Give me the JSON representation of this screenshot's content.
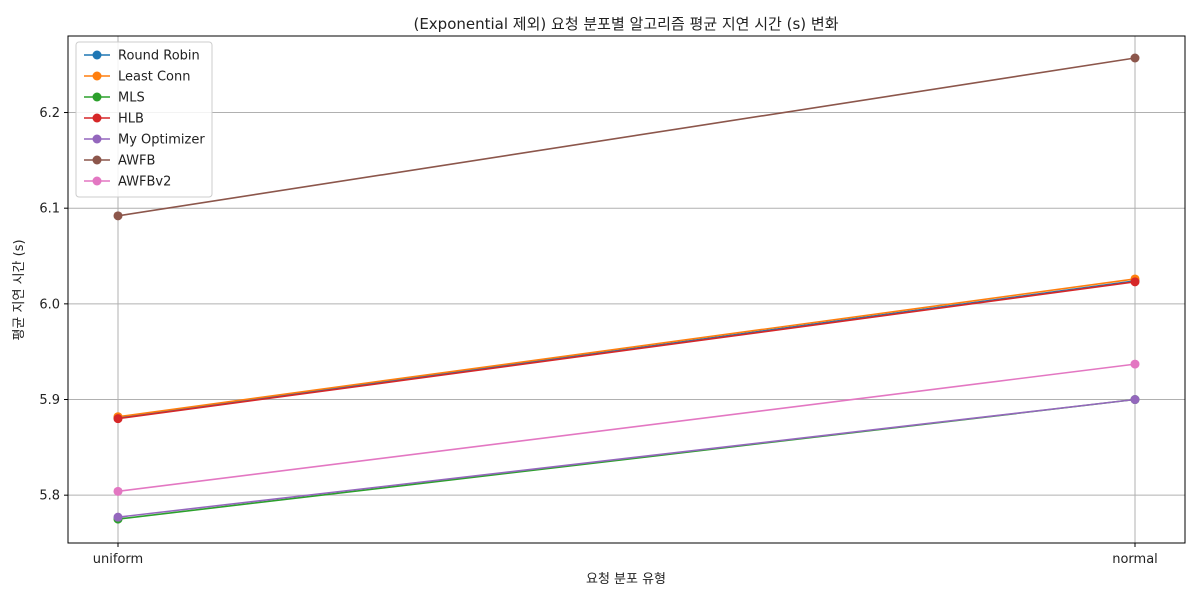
{
  "chart_data": {
    "type": "line",
    "title": "(Exponential 제외) 요청 분포별 알고리즘 평균 지연 시간 (s) 변화",
    "xlabel": "요청 분포 유형",
    "ylabel": "평균 지연 시간 (s)",
    "categories": [
      "uniform",
      "normal"
    ],
    "ylim": [
      5.75,
      6.28
    ],
    "yticks": [
      5.8,
      5.9,
      6.0,
      6.1,
      6.2
    ],
    "ytick_labels": [
      "5.8",
      "5.9",
      "6.0",
      "6.1",
      "6.2"
    ],
    "grid": true,
    "legend_position": "upper-left",
    "series": [
      {
        "name": "Round Robin",
        "color": "#1f77b4",
        "values": [
          5.881,
          6.024
        ]
      },
      {
        "name": "Least Conn",
        "color": "#ff7f0e",
        "values": [
          5.882,
          6.026
        ]
      },
      {
        "name": "MLS",
        "color": "#2ca02c",
        "values": [
          5.775,
          5.9
        ]
      },
      {
        "name": "HLB",
        "color": "#d62728",
        "values": [
          5.88,
          6.023
        ]
      },
      {
        "name": "My Optimizer",
        "color": "#9467bd",
        "values": [
          5.777,
          5.9
        ]
      },
      {
        "name": "AWFB",
        "color": "#8c564b",
        "values": [
          6.092,
          6.257
        ]
      },
      {
        "name": "AWFBv2",
        "color": "#e377c2",
        "values": [
          5.804,
          5.937
        ]
      }
    ]
  }
}
